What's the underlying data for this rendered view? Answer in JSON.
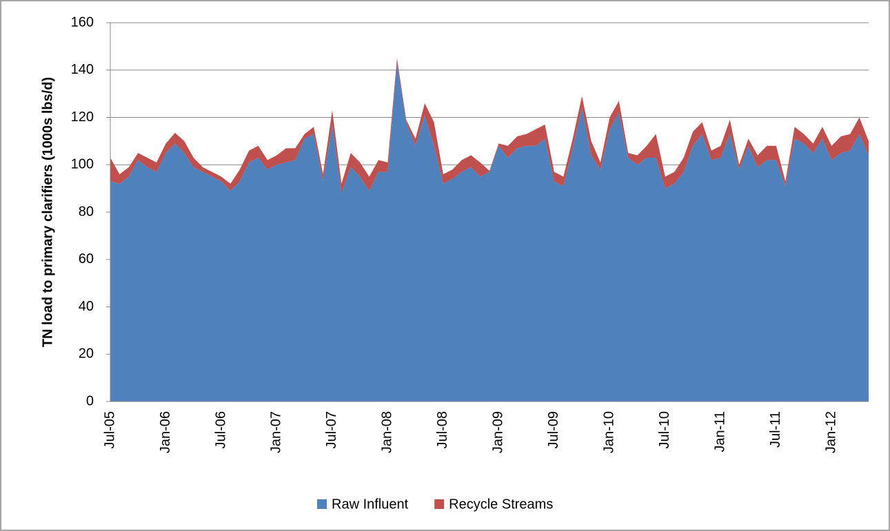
{
  "chart_data": {
    "type": "stacked_area",
    "y_label": "TN load to primary clarifiers (1000s lbs/d)",
    "categories": [
      "Jul-05",
      null,
      null,
      null,
      null,
      null,
      "Jan-06",
      null,
      null,
      null,
      null,
      null,
      "Jul-06",
      null,
      null,
      null,
      null,
      null,
      "Jan-07",
      null,
      null,
      null,
      null,
      null,
      "Jul-07",
      null,
      null,
      null,
      null,
      null,
      "Jan-08",
      null,
      null,
      null,
      null,
      null,
      "Jul-08",
      null,
      null,
      null,
      null,
      null,
      "Jan-09",
      null,
      null,
      null,
      null,
      null,
      "Jul-09",
      null,
      null,
      null,
      null,
      null,
      "Jan-10",
      null,
      null,
      null,
      null,
      null,
      "Jul-10",
      null,
      null,
      null,
      null,
      null,
      "Jan-11",
      null,
      null,
      null,
      null,
      null,
      "Jul-11",
      null,
      null,
      null,
      null,
      null,
      "Jan-12",
      null,
      null,
      null,
      null
    ],
    "series": [
      {
        "name": "Raw Influent",
        "color": "#4f81bd",
        "values": [
          93,
          92,
          95,
          102,
          99,
          97,
          105,
          109,
          105,
          99,
          97,
          95,
          93,
          89,
          93,
          101,
          103,
          98,
          100,
          101,
          102,
          111,
          113,
          93,
          117,
          88,
          99,
          95,
          89,
          97,
          97,
          143,
          118,
          108,
          121,
          108,
          92,
          94,
          97,
          99,
          95,
          97,
          108,
          103,
          107,
          108,
          108,
          111,
          93,
          91,
          107,
          124,
          104,
          98,
          115,
          122,
          103,
          100,
          103,
          103,
          90,
          92,
          97,
          108,
          113,
          102,
          103,
          113,
          98,
          108,
          99,
          102,
          102,
          91,
          111,
          109,
          105,
          111,
          102,
          105,
          106,
          113,
          104
        ]
      },
      {
        "name": "Recycle Streams",
        "color": "#c0504d",
        "values": [
          10,
          4,
          4,
          3,
          4,
          4,
          4,
          4.5,
          5,
          4,
          2,
          2,
          2,
          3,
          5,
          5,
          5,
          4,
          4,
          6,
          5,
          2,
          3,
          3,
          6,
          4,
          6,
          6,
          6,
          5,
          4,
          2,
          1,
          3,
          5,
          10,
          4,
          4,
          5,
          5,
          6,
          0.5,
          1,
          5,
          5,
          5,
          7,
          6,
          4,
          4,
          4,
          5,
          6,
          3,
          5,
          5,
          2,
          4,
          5,
          10,
          5,
          5,
          6,
          6,
          5,
          4,
          5,
          6,
          2,
          3,
          5,
          6,
          6,
          2,
          5,
          4,
          4,
          5,
          6,
          7,
          7,
          7,
          6
        ]
      }
    ],
    "ylim": [
      0,
      160
    ],
    "yticks": [
      0,
      20,
      40,
      60,
      80,
      100,
      120,
      140,
      160
    ],
    "grid": true,
    "legend": "bottom"
  }
}
